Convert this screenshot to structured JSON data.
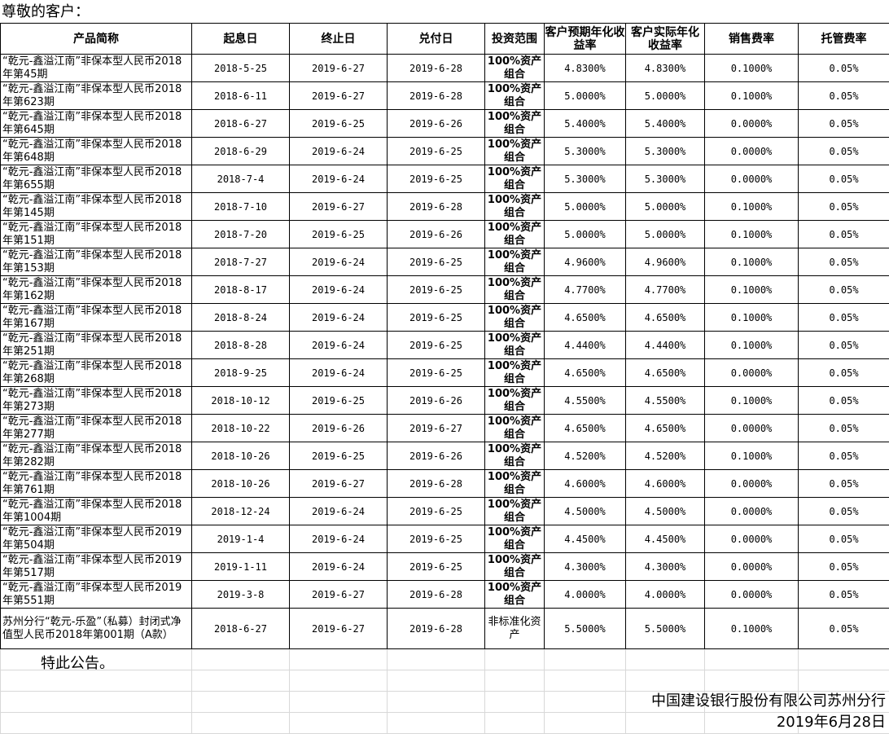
{
  "greeting": "尊敬的客户：",
  "headers": [
    "产品简称",
    "起息日",
    "终止日",
    "兑付日",
    "投资范围",
    "客户预期年化收益率",
    "客户实际年化收益率",
    "销售费率",
    "托管费率"
  ],
  "rows": [
    [
      "“乾元-鑫溢江南”非保本型人民币2018年第45期",
      "2018-5-25",
      "2019-6-27",
      "2019-6-28",
      "100%资产组合",
      "4.8300%",
      "4.8300%",
      "0.1000%",
      "0.05%"
    ],
    [
      "“乾元-鑫溢江南”非保本型人民币2018年第623期",
      "2018-6-11",
      "2019-6-27",
      "2019-6-28",
      "100%资产组合",
      "5.0000%",
      "5.0000%",
      "0.1000%",
      "0.05%"
    ],
    [
      "“乾元-鑫溢江南”非保本型人民币2018年第645期",
      "2018-6-27",
      "2019-6-25",
      "2019-6-26",
      "100%资产组合",
      "5.4000%",
      "5.4000%",
      "0.0000%",
      "0.05%"
    ],
    [
      "“乾元-鑫溢江南”非保本型人民币2018年第648期",
      "2018-6-29",
      "2019-6-24",
      "2019-6-25",
      "100%资产组合",
      "5.3000%",
      "5.3000%",
      "0.0000%",
      "0.05%"
    ],
    [
      "“乾元-鑫溢江南”非保本型人民币2018年第655期",
      "2018-7-4",
      "2019-6-24",
      "2019-6-25",
      "100%资产组合",
      "5.3000%",
      "5.3000%",
      "0.0000%",
      "0.05%"
    ],
    [
      "“乾元-鑫溢江南”非保本型人民币2018年第145期",
      "2018-7-10",
      "2019-6-27",
      "2019-6-28",
      "100%资产组合",
      "5.0000%",
      "5.0000%",
      "0.1000%",
      "0.05%"
    ],
    [
      "“乾元-鑫溢江南”非保本型人民币2018年第151期",
      "2018-7-20",
      "2019-6-25",
      "2019-6-26",
      "100%资产组合",
      "5.0000%",
      "5.0000%",
      "0.1000%",
      "0.05%"
    ],
    [
      "“乾元-鑫溢江南”非保本型人民币2018年第153期",
      "2018-7-27",
      "2019-6-24",
      "2019-6-25",
      "100%资产组合",
      "4.9600%",
      "4.9600%",
      "0.1000%",
      "0.05%"
    ],
    [
      "“乾元-鑫溢江南”非保本型人民币2018年第162期",
      "2018-8-17",
      "2019-6-24",
      "2019-6-25",
      "100%资产组合",
      "4.7700%",
      "4.7700%",
      "0.1000%",
      "0.05%"
    ],
    [
      "“乾元-鑫溢江南”非保本型人民币2018年第167期",
      "2018-8-24",
      "2019-6-24",
      "2019-6-25",
      "100%资产组合",
      "4.6500%",
      "4.6500%",
      "0.1000%",
      "0.05%"
    ],
    [
      "“乾元-鑫溢江南”非保本型人民币2018年第251期",
      "2018-8-28",
      "2019-6-24",
      "2019-6-25",
      "100%资产组合",
      "4.4400%",
      "4.4400%",
      "0.1000%",
      "0.05%"
    ],
    [
      "“乾元-鑫溢江南”非保本型人民币2018年第268期",
      "2018-9-25",
      "2019-6-24",
      "2019-6-25",
      "100%资产组合",
      "4.6500%",
      "4.6500%",
      "0.0000%",
      "0.05%"
    ],
    [
      "“乾元-鑫溢江南”非保本型人民币2018年第273期",
      "2018-10-12",
      "2019-6-25",
      "2019-6-26",
      "100%资产组合",
      "4.5500%",
      "4.5500%",
      "0.1000%",
      "0.05%"
    ],
    [
      "“乾元-鑫溢江南”非保本型人民币2018年第277期",
      "2018-10-22",
      "2019-6-26",
      "2019-6-27",
      "100%资产组合",
      "4.6500%",
      "4.6500%",
      "0.0000%",
      "0.05%"
    ],
    [
      "“乾元-鑫溢江南”非保本型人民币2018年第282期",
      "2018-10-26",
      "2019-6-25",
      "2019-6-26",
      "100%资产组合",
      "4.5200%",
      "4.5200%",
      "0.1000%",
      "0.05%"
    ],
    [
      "“乾元-鑫溢江南”非保本型人民币2018年第761期",
      "2018-10-26",
      "2019-6-27",
      "2019-6-28",
      "100%资产组合",
      "4.6000%",
      "4.6000%",
      "0.0000%",
      "0.05%"
    ],
    [
      "“乾元-鑫溢江南”非保本型人民币2018年第1004期",
      "2018-12-24",
      "2019-6-24",
      "2019-6-25",
      "100%资产组合",
      "4.5000%",
      "4.5000%",
      "0.0000%",
      "0.05%"
    ],
    [
      "“乾元-鑫溢江南”非保本型人民币2019年第504期",
      "2019-1-4",
      "2019-6-24",
      "2019-6-25",
      "100%资产组合",
      "4.4500%",
      "4.4500%",
      "0.0000%",
      "0.05%"
    ],
    [
      "“乾元-鑫溢江南”非保本型人民币2019年第517期",
      "2019-1-11",
      "2019-6-24",
      "2019-6-25",
      "100%资产组合",
      "4.3000%",
      "4.3000%",
      "0.0000%",
      "0.05%"
    ],
    [
      "“乾元-鑫溢江南”非保本型人民币2019年第551期",
      "2019-3-8",
      "2019-6-27",
      "2019-6-28",
      "100%资产组合",
      "4.0000%",
      "4.0000%",
      "0.0000%",
      "0.05%"
    ],
    [
      "苏州分行“乾元-乐盈”（私募）封闭式净值型人民币2018年第001期（A款）",
      "2018-6-27",
      "2019-6-27",
      "2019-6-28",
      "非标准化资产",
      "5.5000%",
      "5.5000%",
      "0.1000%",
      "0.05%"
    ]
  ],
  "notice": "特此公告。",
  "signature": {
    "org": "中国建设银行股份有限公司苏州分行",
    "date": "2019年6月28日"
  }
}
